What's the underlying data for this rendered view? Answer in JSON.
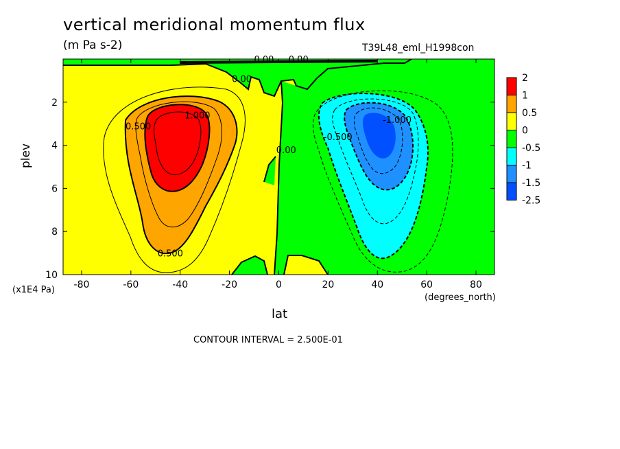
{
  "title": "vertical meridional momentum flux",
  "units": "(m Pa s-2)",
  "dataset": "T39L48_eml_H1998con",
  "contour_interval_text": "CONTOUR INTERVAL = 2.500E-01",
  "chart_data": {
    "type": "heatmap",
    "xlabel": "lat",
    "xunits": "(degrees_north)",
    "ylabel": "plev",
    "yunits": "(x1E4 Pa)",
    "xlim": [
      -87.5,
      87.5
    ],
    "ylim": [
      10,
      0
    ],
    "xticks": [
      -80,
      -60,
      -40,
      -20,
      0,
      20,
      40,
      60,
      80
    ],
    "xtick_labels": [
      "-80",
      "-60",
      "-40",
      "-20",
      "0",
      "20",
      "40",
      "60",
      "80"
    ],
    "yticks": [
      2,
      4,
      6,
      8,
      10
    ],
    "ytick_labels": [
      "2",
      "4",
      "6",
      "8",
      "10"
    ],
    "colorbar": {
      "labels": [
        "2",
        "1",
        "0.5",
        "0",
        "-0.5",
        "-1",
        "-1.5",
        "-2.5"
      ],
      "colors": [
        "#ff0000",
        "#ffa500",
        "#ffff00",
        "#00ff00",
        "#00ffff",
        "#1e90ff",
        "#0050ff"
      ]
    },
    "contour_labels": [
      {
        "text": "0.500",
        "lat": -57,
        "plev": 3.1
      },
      {
        "text": "1.000",
        "lat": -33,
        "plev": 2.6
      },
      {
        "text": "0.500",
        "lat": -44,
        "plev": 9.0
      },
      {
        "text": "0.00",
        "lat": -15,
        "plev": 0.9
      },
      {
        "text": "0.00",
        "lat": -6,
        "plev": 0.0
      },
      {
        "text": "0.00",
        "lat": 8,
        "plev": 0.0
      },
      {
        "text": "0.00",
        "lat": 3,
        "plev": 4.2
      },
      {
        "text": "-0.500",
        "lat": 24,
        "plev": 3.6
      },
      {
        "text": "-1.000",
        "lat": 48,
        "plev": 2.8
      }
    ]
  }
}
